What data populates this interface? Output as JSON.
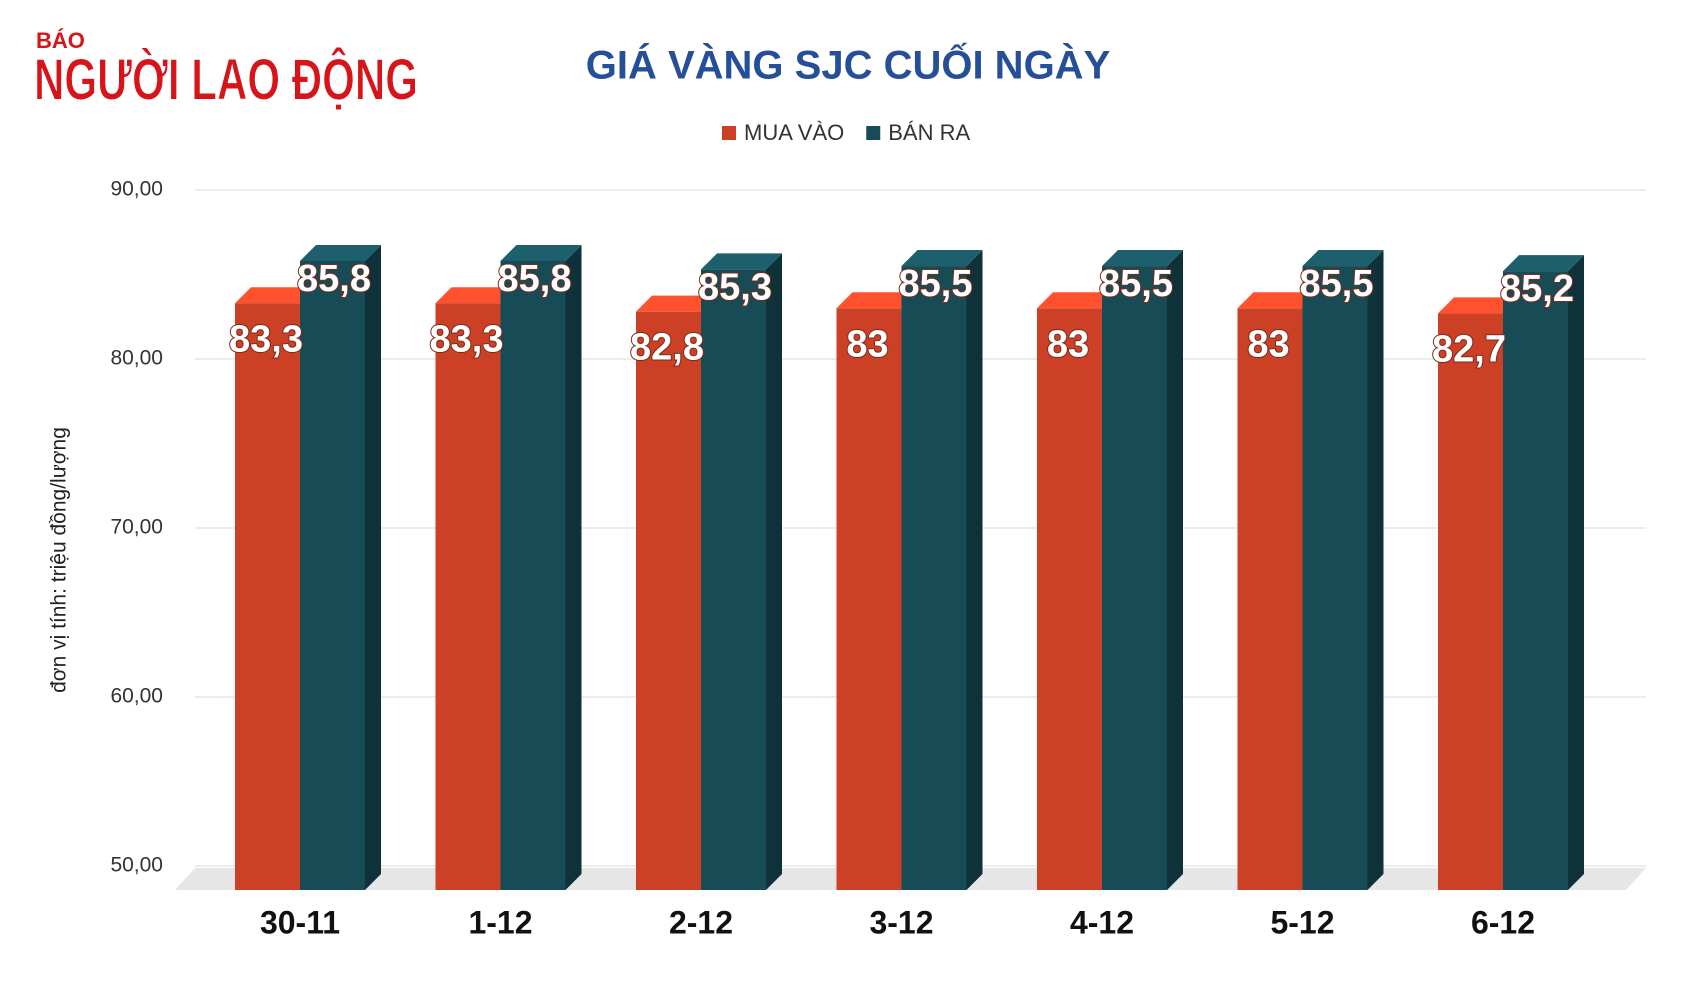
{
  "logo": {
    "small": "BÁO",
    "name": "NGƯỜI LAO ĐỘNG"
  },
  "chart_data": {
    "type": "bar3d",
    "title": "GIÁ VÀNG SJC CUỐI NGÀY",
    "y_label": "đơn vị tính: triệu đồng/lượng",
    "categories": [
      "30-11",
      "1-12",
      "2-12",
      "3-12",
      "4-12",
      "5-12",
      "6-12"
    ],
    "series": [
      {
        "name": "MUA VÀO",
        "color": "#cc4125",
        "values": [
          83.3,
          83.3,
          82.8,
          83,
          83,
          83,
          82.7
        ],
        "value_labels": [
          "83,3",
          "83,3",
          "82,8",
          "83",
          "83",
          "83",
          "82,7"
        ]
      },
      {
        "name": "BÁN RA",
        "color": "#174c57",
        "values": [
          85.8,
          85.8,
          85.3,
          85.5,
          85.5,
          85.5,
          85.2
        ],
        "value_labels": [
          "85,8",
          "85,8",
          "85,3",
          "85,5",
          "85,5",
          "85,5",
          "85,2"
        ]
      }
    ],
    "ylim": [
      50,
      90
    ],
    "yticks": [
      {
        "value": 50,
        "label": "50,00"
      },
      {
        "value": 60,
        "label": "60,00"
      },
      {
        "value": 70,
        "label": "70,00"
      },
      {
        "value": 80,
        "label": "80,00"
      },
      {
        "value": 90,
        "label": "90,00"
      }
    ],
    "grid": true
  }
}
